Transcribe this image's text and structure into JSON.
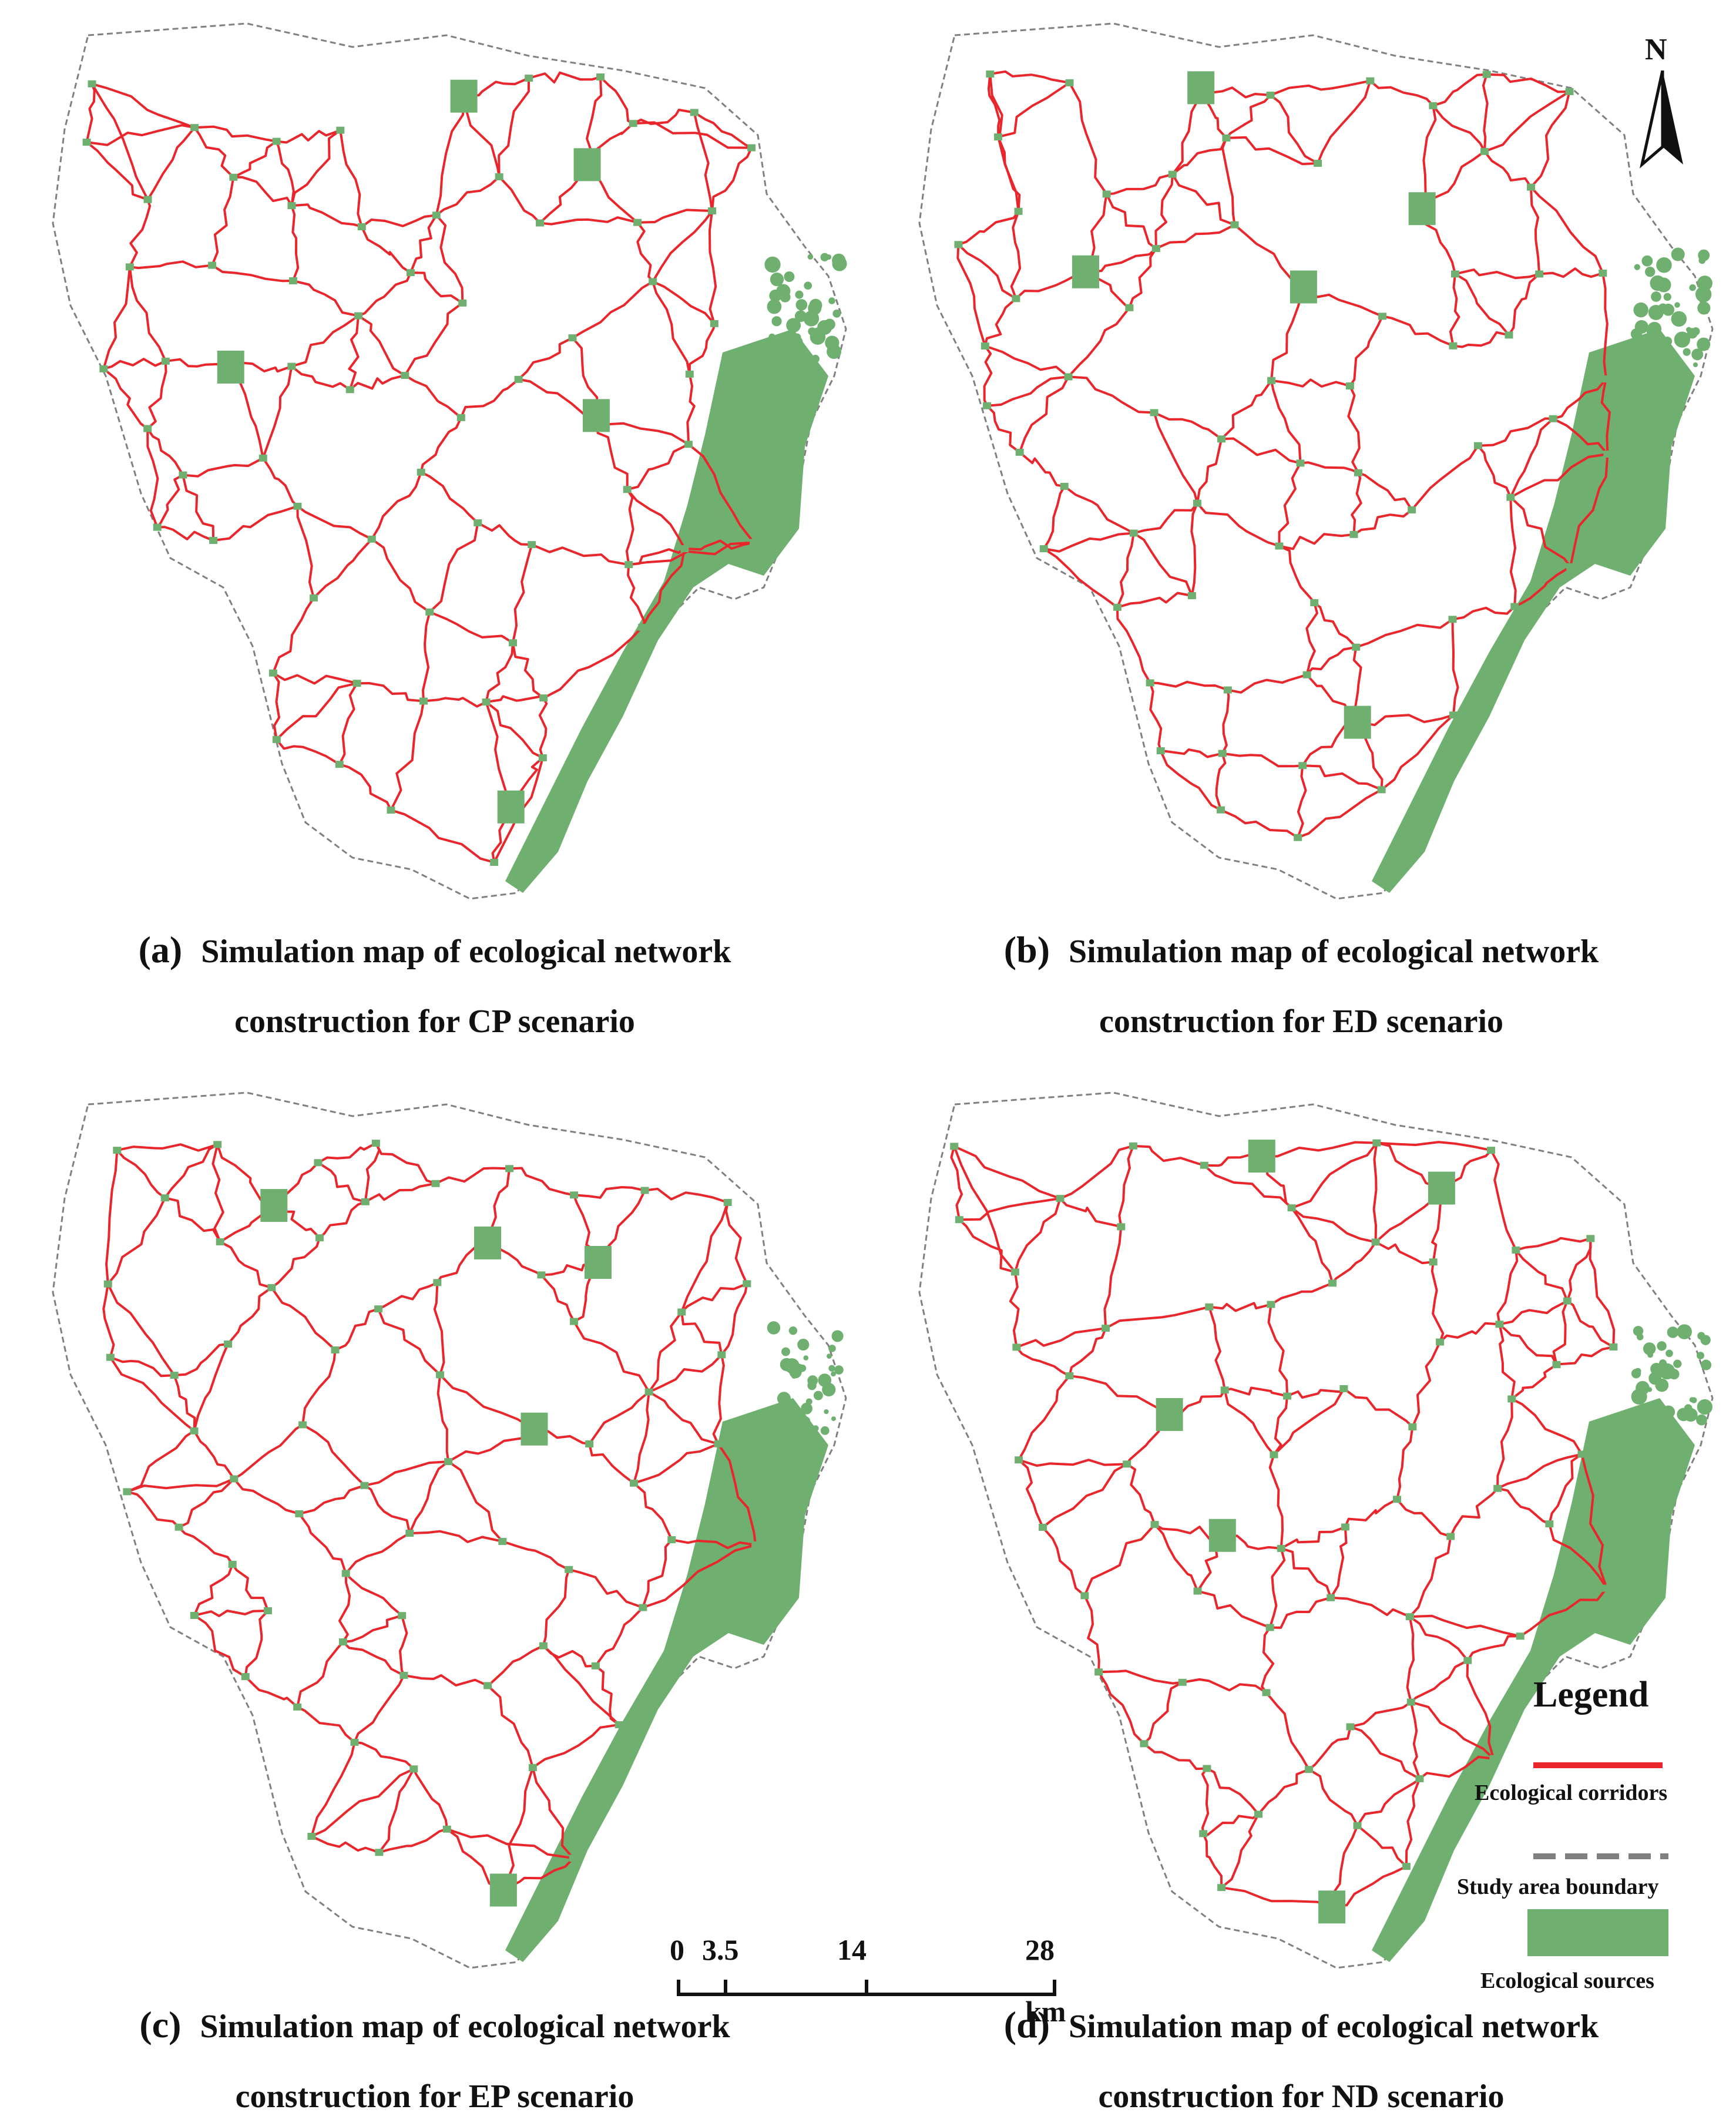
{
  "colors": {
    "corridor": "#e8262c",
    "boundary": "#808080",
    "source": "#6faf6f"
  },
  "panels": [
    {
      "tag": "(a)",
      "line1": "Simulation map of ecological network",
      "line2": "construction for CP scenario"
    },
    {
      "tag": "(b)",
      "line1": "Simulation map of ecological network",
      "line2": "construction for ED scenario"
    },
    {
      "tag": "(c)",
      "line1": "Simulation map of ecological network",
      "line2": "construction for EP scenario"
    },
    {
      "tag": "(d)",
      "line1": "Simulation map of ecological network",
      "line2": "construction for ND scenario"
    }
  ],
  "north_arrow": {
    "label": "N",
    "icon": "north-arrow-icon"
  },
  "scale_bar": {
    "ticks": [
      "0",
      "3.5",
      "14",
      "28"
    ],
    "unit": "km"
  },
  "legend": {
    "title": "Legend",
    "items": [
      {
        "label": "Ecological corridors",
        "symbol": "red-line"
      },
      {
        "label": "Study area boundary",
        "symbol": "grey-dashed-line"
      },
      {
        "label": "Ecological sources",
        "symbol": "green-box"
      }
    ]
  }
}
